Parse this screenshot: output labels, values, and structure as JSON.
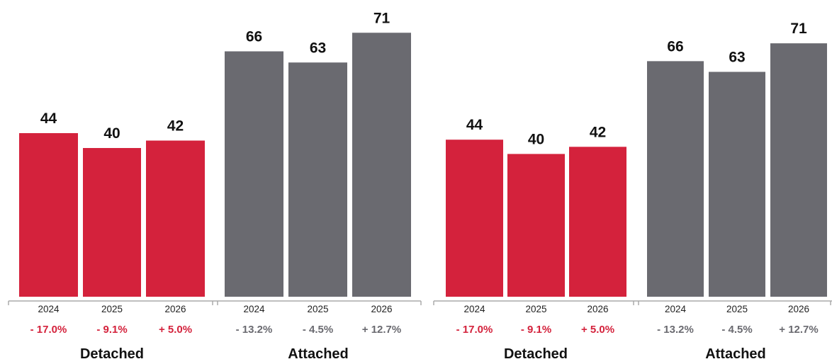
{
  "colors": {
    "detached": "#d4223c",
    "attached": "#6a6a70",
    "axis": "#aaaaaa"
  },
  "chart_data": [
    {
      "type": "bar",
      "categories": [
        "2024",
        "2025",
        "2026",
        "2024",
        "2025",
        "2026"
      ],
      "groups": [
        {
          "name": "Detached",
          "color": "detached",
          "years": [
            "2024",
            "2025",
            "2026"
          ],
          "values": [
            44,
            40,
            42
          ],
          "changes": [
            "- 17.0%",
            "- 9.1%",
            "+ 5.0%"
          ]
        },
        {
          "name": "Attached",
          "color": "attached",
          "years": [
            "2024",
            "2025",
            "2026"
          ],
          "values": [
            66,
            63,
            71
          ],
          "changes": [
            "- 13.2%",
            "- 4.5%",
            "+ 12.7%"
          ]
        }
      ],
      "ylim": [
        0,
        80
      ],
      "grid": false
    },
    {
      "type": "bar",
      "categories": [
        "2024",
        "2025",
        "2026",
        "2024",
        "2025",
        "2026"
      ],
      "groups": [
        {
          "name": "Detached",
          "color": "detached",
          "years": [
            "2024",
            "2025",
            "2026"
          ],
          "values": [
            44,
            40,
            42
          ],
          "changes": [
            "- 17.0%",
            "- 9.1%",
            "+ 5.0%"
          ]
        },
        {
          "name": "Attached",
          "color": "attached",
          "years": [
            "2024",
            "2025",
            "2026"
          ],
          "values": [
            66,
            63,
            71
          ],
          "changes": [
            "- 13.2%",
            "- 4.5%",
            "+ 12.7%"
          ]
        }
      ],
      "ylim": [
        0,
        80
      ],
      "grid": false
    }
  ]
}
